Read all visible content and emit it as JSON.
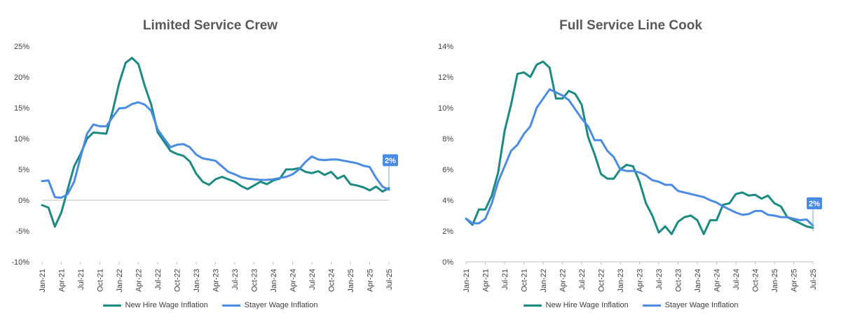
{
  "colors": {
    "new_hire": "#1A8A83",
    "stayer": "#4A8BE4",
    "axis": "#BFBFBF",
    "text": "#404040",
    "title": "#595959"
  },
  "legend": {
    "new_hire_label": "New Hire Wage Inflation",
    "stayer_label": "Stayer Wage Inflation"
  },
  "chart_data": [
    {
      "type": "line",
      "title": "Limited Service Crew",
      "xlabel": "",
      "ylabel": "",
      "ylim": [
        -10,
        25
      ],
      "yticks": [
        -10,
        -5,
        0,
        5,
        10,
        15,
        20,
        25
      ],
      "ytick_labels": [
        "-10%",
        "-5%",
        "0%",
        "5%",
        "10%",
        "15%",
        "20%",
        "25%"
      ],
      "x": [
        "Jan-21",
        "Feb-21",
        "Mar-21",
        "Apr-21",
        "May-21",
        "Jun-21",
        "Jul-21",
        "Aug-21",
        "Sep-21",
        "Oct-21",
        "Nov-21",
        "Dec-21",
        "Jan-22",
        "Feb-22",
        "Mar-22",
        "Apr-22",
        "May-22",
        "Jun-22",
        "Jul-22",
        "Aug-22",
        "Sep-22",
        "Oct-22",
        "Nov-22",
        "Dec-22",
        "Jan-23",
        "Feb-23",
        "Mar-23",
        "Apr-23",
        "May-23",
        "Jun-23",
        "Jul-23",
        "Aug-23",
        "Sep-23",
        "Oct-23",
        "Nov-23",
        "Dec-23",
        "Jan-24",
        "Feb-24",
        "Mar-24",
        "Apr-24",
        "May-24",
        "Jun-24",
        "Jul-24",
        "Aug-24",
        "Sep-24",
        "Oct-24",
        "Nov-24",
        "Dec-24",
        "Jan-25",
        "Feb-25",
        "Mar-25",
        "Apr-25",
        "May-25",
        "Jun-25",
        "Jul-25"
      ],
      "xtick_labels": [
        "Jan-21",
        "Apr-21",
        "Jul-21",
        "Oct-21",
        "Jan-22",
        "Apr-22",
        "Jul-22",
        "Oct-22",
        "Jan-23",
        "Apr-23",
        "Jul-23",
        "Oct-23",
        "Jan-24",
        "Apr-24",
        "Jul-24",
        "Oct-24",
        "Jan-25",
        "Apr-25",
        "Jul-25"
      ],
      "series": [
        {
          "name": "New Hire Wage Inflation",
          "values": [
            -0.8,
            -1.2,
            -4.3,
            -2.0,
            1.8,
            5.5,
            7.5,
            10.0,
            11.0,
            10.9,
            10.8,
            14.5,
            19.0,
            22.3,
            23.1,
            22.1,
            18.5,
            15.5,
            11.0,
            9.5,
            8.0,
            7.5,
            7.2,
            6.3,
            4.3,
            3.0,
            2.5,
            3.4,
            3.8,
            3.4,
            3.0,
            2.3,
            1.8,
            2.4,
            3.0,
            2.6,
            3.2,
            3.5,
            5.0,
            5.0,
            5.2,
            4.6,
            4.4,
            4.7,
            4.1,
            4.6,
            3.5,
            4.0,
            2.6,
            2.4,
            2.1,
            1.6,
            2.2,
            1.4,
            2.0
          ]
        },
        {
          "name": "Stayer Wage Inflation",
          "values": [
            3.1,
            3.2,
            0.5,
            0.4,
            1.0,
            3.0,
            7.0,
            10.8,
            12.3,
            12.0,
            12.0,
            13.5,
            14.9,
            15.0,
            15.6,
            15.9,
            15.5,
            14.5,
            11.5,
            10.0,
            8.6,
            9.0,
            9.1,
            8.6,
            7.4,
            6.8,
            6.6,
            6.4,
            5.5,
            4.6,
            4.2,
            3.7,
            3.5,
            3.4,
            3.3,
            3.3,
            3.4,
            3.6,
            3.8,
            4.2,
            5.0,
            6.2,
            7.1,
            6.6,
            6.5,
            6.6,
            6.6,
            6.4,
            6.2,
            6.0,
            5.6,
            5.4,
            3.6,
            2.2,
            1.7
          ]
        }
      ],
      "annotation": {
        "text": "2%",
        "x": "Jul-25",
        "y": 2
      }
    },
    {
      "type": "line",
      "title": "Full Service Line Cook",
      "xlabel": "",
      "ylabel": "",
      "ylim": [
        0,
        14
      ],
      "yticks": [
        0,
        2,
        4,
        6,
        8,
        10,
        12,
        14
      ],
      "ytick_labels": [
        "0%",
        "2%",
        "4%",
        "6%",
        "8%",
        "10%",
        "12%",
        "14%"
      ],
      "x": [
        "Jan-21",
        "Feb-21",
        "Mar-21",
        "Apr-21",
        "May-21",
        "Jun-21",
        "Jul-21",
        "Aug-21",
        "Sep-21",
        "Oct-21",
        "Nov-21",
        "Dec-21",
        "Jan-22",
        "Feb-22",
        "Mar-22",
        "Apr-22",
        "May-22",
        "Jun-22",
        "Jul-22",
        "Aug-22",
        "Sep-22",
        "Oct-22",
        "Nov-22",
        "Dec-22",
        "Jan-23",
        "Feb-23",
        "Mar-23",
        "Apr-23",
        "May-23",
        "Jun-23",
        "Jul-23",
        "Aug-23",
        "Sep-23",
        "Oct-23",
        "Nov-23",
        "Dec-23",
        "Jan-24",
        "Feb-24",
        "Mar-24",
        "Apr-24",
        "May-24",
        "Jun-24",
        "Jul-24",
        "Aug-24",
        "Sep-24",
        "Oct-24",
        "Nov-24",
        "Dec-24",
        "Jan-25",
        "Feb-25",
        "Mar-25",
        "Apr-25",
        "May-25",
        "Jun-25",
        "Jul-25"
      ],
      "xtick_labels": [
        "Jan-21",
        "Apr-21",
        "Jul-21",
        "Oct-21",
        "Jan-22",
        "Apr-22",
        "Jul-22",
        "Oct-22",
        "Jan-23",
        "Apr-23",
        "Jul-23",
        "Oct-23",
        "Jan-24",
        "Apr-24",
        "Jul-24",
        "Oct-24",
        "Jan-25",
        "Apr-25",
        "Jul-25"
      ],
      "series": [
        {
          "name": "New Hire Wage Inflation",
          "values": [
            2.8,
            2.4,
            3.4,
            3.4,
            4.3,
            5.8,
            8.5,
            10.2,
            12.2,
            12.3,
            12.0,
            12.8,
            13.0,
            12.6,
            10.6,
            10.6,
            11.1,
            10.9,
            10.2,
            8.1,
            7.0,
            5.7,
            5.4,
            5.4,
            6.0,
            6.3,
            6.2,
            5.2,
            3.8,
            3.0,
            1.9,
            2.3,
            1.8,
            2.6,
            2.9,
            3.0,
            2.7,
            1.8,
            2.7,
            2.7,
            3.7,
            3.8,
            4.4,
            4.5,
            4.3,
            4.35,
            4.1,
            4.3,
            3.8,
            3.6,
            2.9,
            2.7,
            2.5,
            2.3,
            2.2
          ]
        },
        {
          "name": "Stayer Wage Inflation",
          "values": [
            2.8,
            2.5,
            2.5,
            2.8,
            3.8,
            5.2,
            6.2,
            7.2,
            7.6,
            8.3,
            8.8,
            10.0,
            10.6,
            11.2,
            11.0,
            10.8,
            10.5,
            9.9,
            9.3,
            8.8,
            7.9,
            7.9,
            7.2,
            6.8,
            6.0,
            5.9,
            5.9,
            5.8,
            5.6,
            5.3,
            5.2,
            5.0,
            5.0,
            4.6,
            4.5,
            4.4,
            4.3,
            4.2,
            4.0,
            3.85,
            3.6,
            3.4,
            3.2,
            3.05,
            3.1,
            3.3,
            3.3,
            3.05,
            3.0,
            2.9,
            2.9,
            2.8,
            2.7,
            2.75,
            2.35
          ]
        }
      ],
      "annotation": {
        "text": "2%",
        "x": "Jul-25",
        "y": 2
      }
    }
  ]
}
